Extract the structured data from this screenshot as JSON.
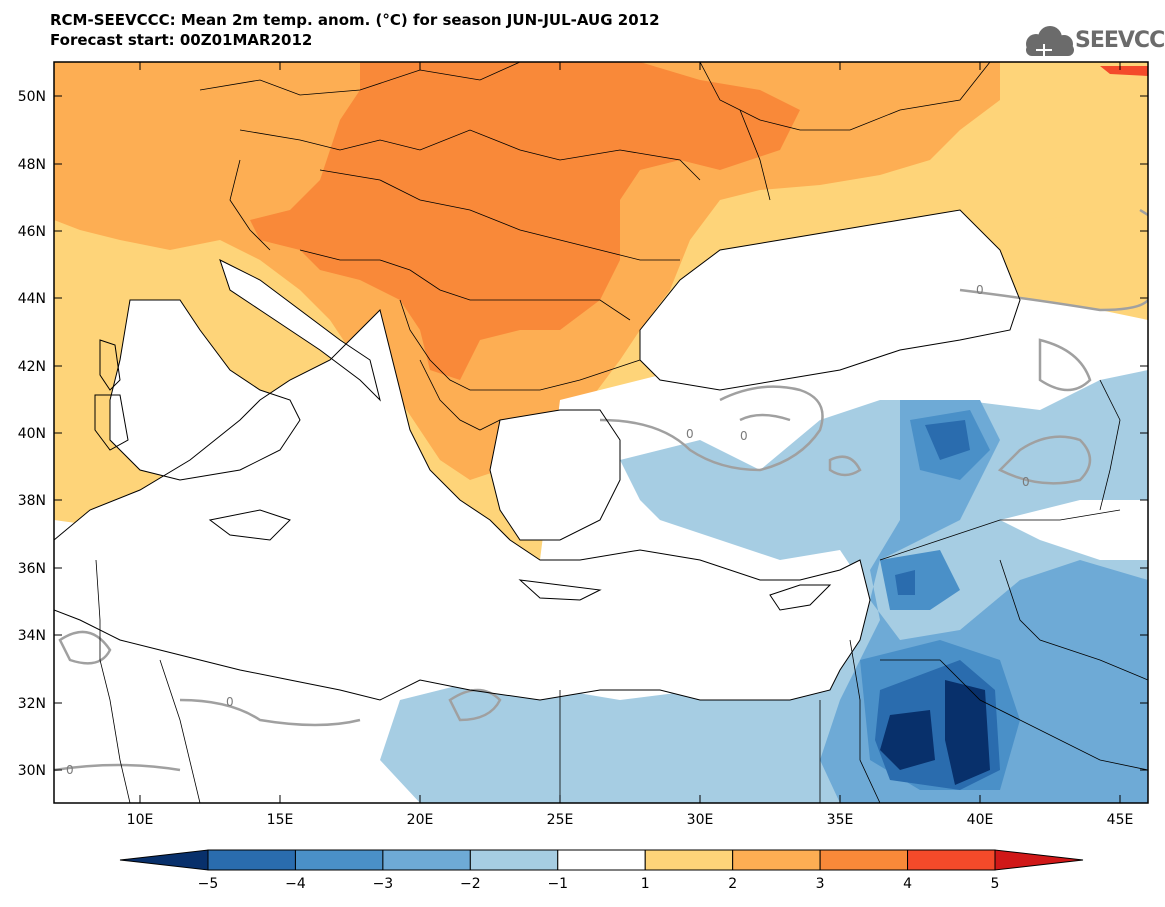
{
  "header": {
    "title_line1": "RCM-SEEVCCC: Mean 2m temp. anom. (°C) for season JUN-JUL-AUG 2012",
    "title_line2": "Forecast start: 00Z01MAR2012"
  },
  "logo": {
    "text": "SEEVCCC",
    "icon": "cloud-icon"
  },
  "map": {
    "lat_ticks": [
      "50N",
      "48N",
      "46N",
      "44N",
      "42N",
      "40N",
      "38N",
      "36N",
      "34N",
      "32N",
      "30N"
    ],
    "lon_ticks": [
      "10E",
      "15E",
      "20E",
      "25E",
      "30E",
      "35E",
      "40E",
      "45E"
    ],
    "contour_label": "0"
  },
  "colorbar": {
    "labels": [
      "−5",
      "−4",
      "−3",
      "−2",
      "−1",
      "1",
      "2",
      "3",
      "4",
      "5"
    ],
    "colors": [
      "#08306b",
      "#2a6cae",
      "#4a90c8",
      "#6eaad6",
      "#a6cde3",
      "#ffffff",
      "#fed479",
      "#fdae53",
      "#f98939",
      "#f44a2a",
      "#d01818"
    ]
  },
  "colors": {
    "sea": "#ffffff",
    "warm_1": "#fed479",
    "warm_2": "#fdae53",
    "warm_3": "#f98939",
    "cool_1": "#a6cde3",
    "cool_2": "#6eaad6",
    "cool_3": "#4a90c8",
    "cool_4": "#2a6cae",
    "cool_5": "#08306b",
    "contour": "#a0a0a0"
  }
}
